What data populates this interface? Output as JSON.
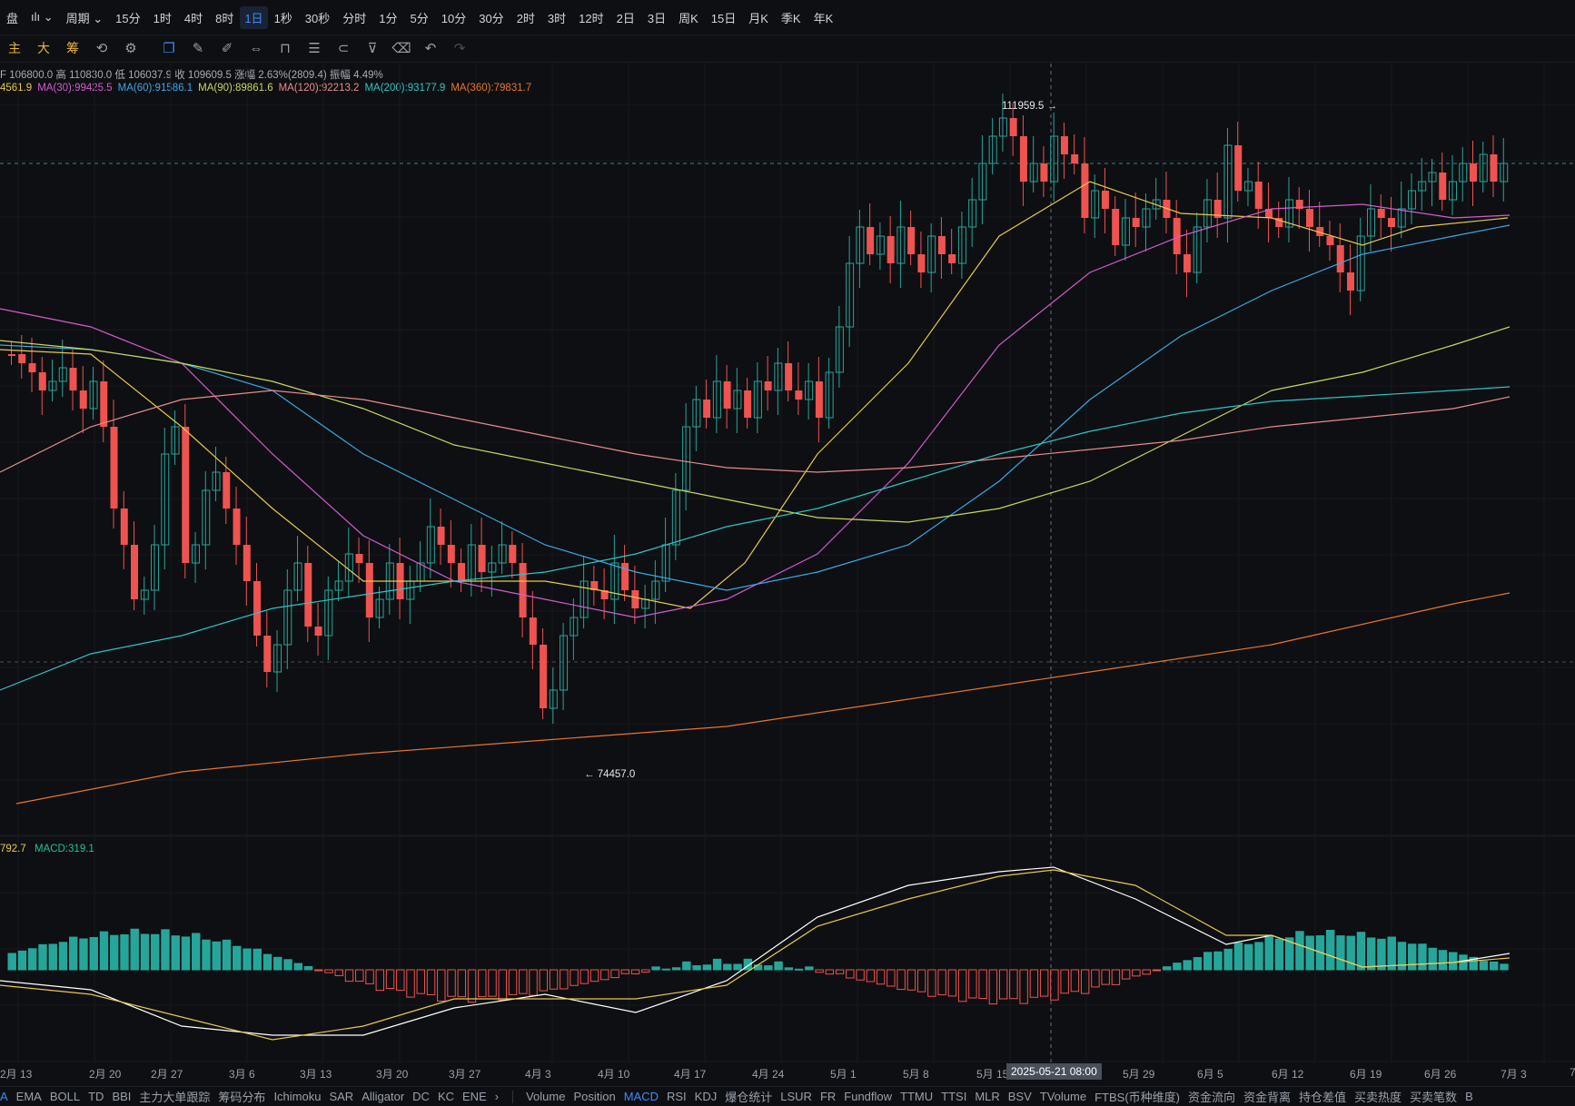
{
  "toolbar": {
    "items": [
      "盘",
      "ılı ⌄",
      "周期 ⌄",
      "15分",
      "1时",
      "4时",
      "8时",
      "1日",
      "1秒",
      "30秒",
      "分时",
      "1分",
      "5分",
      "10分",
      "30分",
      "2时",
      "3时",
      "12时",
      "2日",
      "3日",
      "周K",
      "15日",
      "月K",
      "季K",
      "年K"
    ],
    "active": "1日"
  },
  "drawbar": {
    "items": [
      "主",
      "大",
      "筹"
    ]
  },
  "ohlc": {
    "text": "F 106800.0 高 110830.0 低 106037.9 收 109609.5 涨幅 2.63%(2809.4) 振幅 4.49%"
  },
  "ma": [
    {
      "label": "4561.9",
      "color": "#e8c84a"
    },
    {
      "label": "MA(30):99425.5",
      "color": "#d45bd0"
    },
    {
      "label": "MA(60):91586.1",
      "color": "#3aa8e8"
    },
    {
      "label": "MA(90):89861.6",
      "color": "#c8d85a"
    },
    {
      "label": "MA(120):92213.2",
      "color": "#e88b8b"
    },
    {
      "label": "MA(200):93177.9",
      "color": "#2ec4c4"
    },
    {
      "label": "MA(360):79831.7",
      "color": "#e8762a"
    }
  ],
  "macd": {
    "left": "792.7",
    "label": "MACD:319.1"
  },
  "markers": {
    "high": "111959.5 →",
    "low": "← 74457.0"
  },
  "crosshair_date": "2025-05-21 08:00",
  "xaxis": [
    "2月 13",
    "2月 20",
    "2月 27",
    "3月 6",
    "3月 13",
    "3月 20",
    "3月 27",
    "4月 3",
    "4月 10",
    "4月 17",
    "4月 24",
    "5月 1",
    "5月 8",
    "5月 15",
    "5月 29",
    "6月 5",
    "6月 12",
    "6月 19",
    "6月 26",
    "7月 3",
    "7"
  ],
  "bottom": {
    "left": [
      "A",
      "EMA",
      "BOLL",
      "TD",
      "BBI",
      "主力大单跟踪",
      "筹码分布",
      "Ichimoku",
      "SAR",
      "Alligator",
      "DC",
      "KC",
      "ENE",
      "›"
    ],
    "right": [
      "Volume",
      "Position",
      "MACD",
      "RSI",
      "KDJ",
      "爆仓统计",
      "LSUR",
      "FR",
      "Fundflow",
      "TTMU",
      "TTSI",
      "MLR",
      "BSV",
      "TVolume",
      "FTBS(币种维度)",
      "资金流向",
      "资金背离",
      "持仓差值",
      "买卖热度",
      "买卖笔数",
      "B"
    ],
    "active": "MACD"
  },
  "colors": {
    "up": "#26a69a",
    "down": "#ef5350",
    "bg": "#0e0f12",
    "accent": "#3d8bfd"
  }
}
